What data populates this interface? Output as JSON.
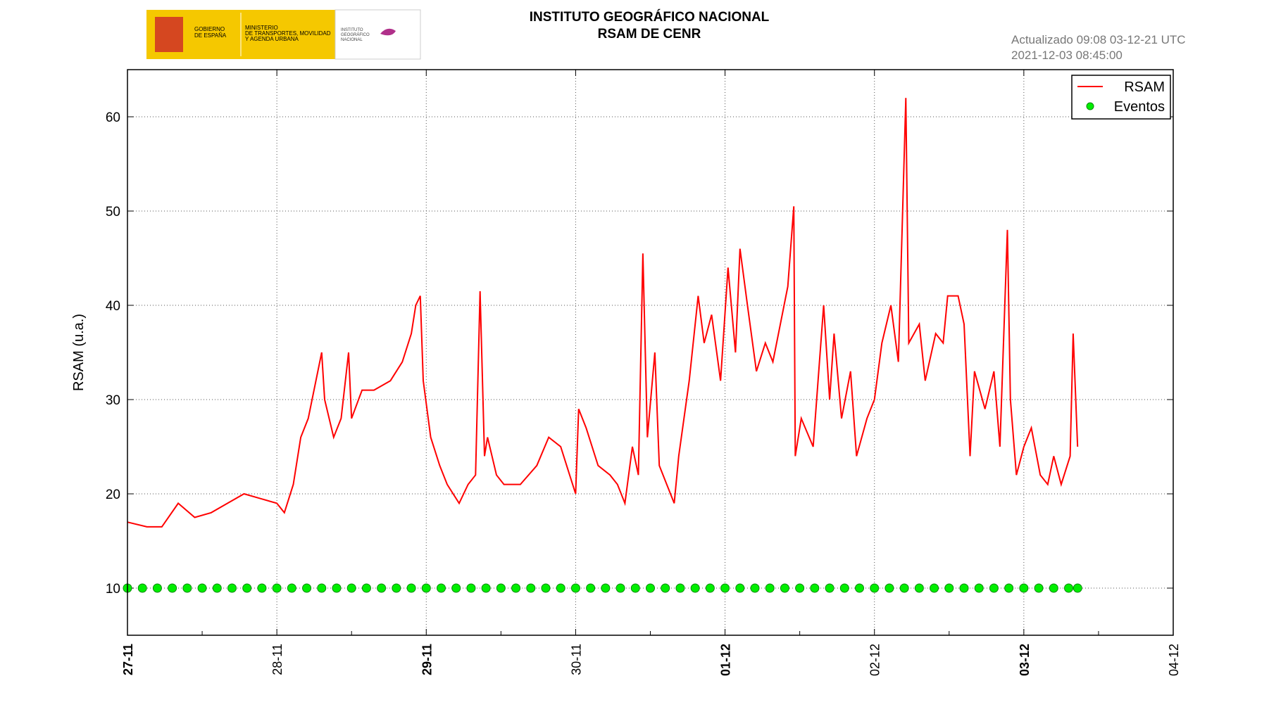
{
  "header": {
    "logo": {
      "government": [
        "GOBIERNO",
        "DE ESPAÑA"
      ],
      "ministry": [
        "MINISTERIO",
        "DE TRANSPORTES, MOVILIDAD",
        "Y AGENDA URBANA"
      ],
      "institute": [
        "INSTITUTO",
        "GEOGRÁFICO",
        "NACIONAL"
      ]
    },
    "updated": "Actualizado 09:08 03-12-21 UTC",
    "timestamp": "2021-12-03 08:45:00"
  },
  "chart_data": {
    "type": "line",
    "title": "INSTITUTO GEOGRÁFICO NACIONAL",
    "subtitle": "RSAM DE CENR",
    "y_label": "RSAM (u.a.)",
    "xlim": [
      0,
      7
    ],
    "xticks": [
      {
        "value": 0,
        "label": "27-11"
      },
      {
        "value": 1,
        "label": "28-11"
      },
      {
        "value": 2,
        "label": "29-11"
      },
      {
        "value": 3,
        "label": "30-11"
      },
      {
        "value": 4,
        "label": "01-12"
      },
      {
        "value": 5,
        "label": "02-12"
      },
      {
        "value": 6,
        "label": "03-12"
      },
      {
        "value": 7,
        "label": "04-12"
      }
    ],
    "ylim": [
      5,
      65
    ],
    "yticks": [
      10,
      20,
      30,
      40,
      50,
      60
    ],
    "grid": true,
    "legend": "northeast",
    "series": [
      {
        "name": "RSAM",
        "color": "#ff0000",
        "mode": "line",
        "x": [
          0,
          0.13,
          0.23,
          0.34,
          0.45,
          0.56,
          0.67,
          0.78,
          0.89,
          1.0,
          1.05,
          1.11,
          1.16,
          1.21,
          1.3,
          1.32,
          1.38,
          1.43,
          1.48,
          1.5,
          1.57,
          1.65,
          1.76,
          1.84,
          1.9,
          1.93,
          1.96,
          1.98,
          2.03,
          2.09,
          2.14,
          2.22,
          2.28,
          2.33,
          2.36,
          2.39,
          2.41,
          2.47,
          2.52,
          2.63,
          2.74,
          2.82,
          2.9,
          2.96,
          3.0,
          3.02,
          3.07,
          3.15,
          3.23,
          3.28,
          3.33,
          3.38,
          3.42,
          3.45,
          3.48,
          3.53,
          3.56,
          3.61,
          3.66,
          3.69,
          3.76,
          3.82,
          3.86,
          3.91,
          3.97,
          4.02,
          4.07,
          4.1,
          4.15,
          4.21,
          4.27,
          4.32,
          4.37,
          4.42,
          4.46,
          4.47,
          4.51,
          4.59,
          4.66,
          4.7,
          4.73,
          4.78,
          4.84,
          4.88,
          4.95,
          5.0,
          5.05,
          5.11,
          5.16,
          5.21,
          5.23,
          5.3,
          5.34,
          5.41,
          5.46,
          5.49,
          5.56,
          5.6,
          5.64,
          5.67,
          5.74,
          5.8,
          5.84,
          5.89,
          5.91,
          5.95,
          6.0,
          6.05,
          6.11,
          6.16,
          6.2,
          6.25,
          6.31,
          6.33,
          6.36
        ],
        "values": [
          17,
          16.5,
          16.5,
          19,
          17.5,
          18,
          19,
          20,
          19.5,
          19,
          18,
          21,
          26,
          28,
          35,
          30,
          26,
          28,
          35,
          28,
          31,
          31,
          32,
          34,
          37,
          40,
          41,
          32,
          26,
          23,
          21,
          19,
          21,
          22,
          41.5,
          24,
          26,
          22,
          21,
          21,
          23,
          26,
          25,
          22,
          20,
          29,
          27,
          23,
          22,
          21,
          19,
          25,
          22,
          45.5,
          26,
          35,
          23,
          21,
          19,
          24,
          32,
          41,
          36,
          39,
          32,
          44,
          35,
          46,
          40,
          33,
          36,
          34,
          38,
          42,
          50.5,
          24,
          28,
          25,
          40,
          30,
          37,
          28,
          33,
          24,
          28,
          30,
          36,
          40,
          34,
          62,
          36,
          38,
          32,
          37,
          36,
          41,
          41,
          38,
          24,
          33,
          29,
          33,
          25,
          48,
          30,
          22,
          25,
          27,
          22,
          21,
          24,
          21,
          24,
          37,
          25
        ]
      },
      {
        "name": "Eventos",
        "color": "#00ee00",
        "mode": "markers",
        "x": [
          0,
          0.1,
          0.2,
          0.3,
          0.4,
          0.5,
          0.6,
          0.7,
          0.8,
          0.9,
          1.0,
          1.1,
          1.2,
          1.3,
          1.4,
          1.5,
          1.6,
          1.7,
          1.8,
          1.9,
          2.0,
          2.1,
          2.2,
          2.3,
          2.4,
          2.5,
          2.6,
          2.7,
          2.8,
          2.9,
          3.0,
          3.1,
          3.2,
          3.3,
          3.4,
          3.5,
          3.6,
          3.7,
          3.8,
          3.9,
          4.0,
          4.1,
          4.2,
          4.3,
          4.4,
          4.5,
          4.6,
          4.7,
          4.8,
          4.9,
          5.0,
          5.1,
          5.2,
          5.3,
          5.4,
          5.5,
          5.6,
          5.7,
          5.8,
          5.9,
          6.0,
          6.1,
          6.2,
          6.3,
          6.36
        ],
        "values": [
          10,
          10,
          10,
          10,
          10,
          10,
          10,
          10,
          10,
          10,
          10,
          10,
          10,
          10,
          10,
          10,
          10,
          10,
          10,
          10,
          10,
          10,
          10,
          10,
          10,
          10,
          10,
          10,
          10,
          10,
          10,
          10,
          10,
          10,
          10,
          10,
          10,
          10,
          10,
          10,
          10,
          10,
          10,
          10,
          10,
          10,
          10,
          10,
          10,
          10,
          10,
          10,
          10,
          10,
          10,
          10,
          10,
          10,
          10,
          10,
          10,
          10,
          10,
          10,
          10
        ]
      }
    ]
  }
}
